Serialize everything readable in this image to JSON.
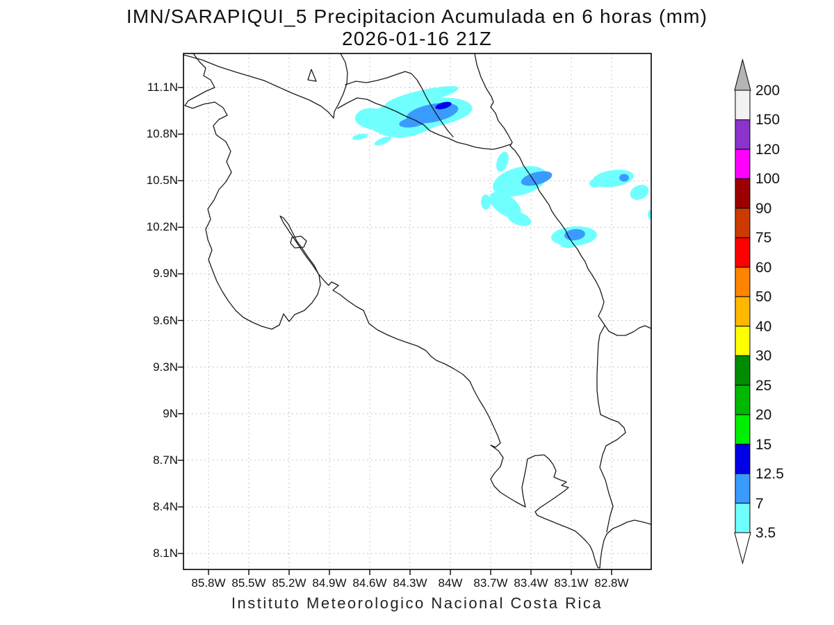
{
  "title": {
    "line1": "IMN/SARAPIQUI_5 Precipitacion Acumulada en 6 horas (mm)",
    "line2": "2026-01-16 21Z"
  },
  "caption": "Instituto Meteorologico Nacional Costa Rica",
  "axes": {
    "lat_ticks": [
      "11.1N",
      "10.8N",
      "10.5N",
      "10.2N",
      "9.9N",
      "9.6N",
      "9.3N",
      "9N",
      "8.7N",
      "8.4N",
      "8.1N"
    ],
    "lon_ticks": [
      "85.8W",
      "85.5W",
      "85.2W",
      "84.9W",
      "84.6W",
      "84.3W",
      "84W",
      "83.7W",
      "83.4W",
      "83.1W",
      "82.8W"
    ]
  },
  "colorbar": {
    "tick_labels": [
      "200",
      "150",
      "120",
      "100",
      "90",
      "75",
      "60",
      "50",
      "40",
      "30",
      "25",
      "20",
      "15",
      "12.5",
      "7",
      "3.5"
    ],
    "segment_colors_top_to_bottom": [
      "#f2f2f2",
      "#8c33cc",
      "#ff00ff",
      "#9b0000",
      "#cc3a00",
      "#ff0000",
      "#ff8400",
      "#ffb800",
      "#ffff00",
      "#008c00",
      "#00b800",
      "#00ee00",
      "#0000e6",
      "#3a9bff",
      "#70ffff"
    ],
    "above_max_arrow_color": "#b4b4b4",
    "below_min_arrow_color": "#ffffff"
  },
  "map_colors": {
    "coastline": "#1a1a1a",
    "grid": "#b3b3b3",
    "background": "#ffffff"
  },
  "precip_palette": {
    "light": "#70ffff",
    "medium": "#3a9bff",
    "dark": "#0000e6"
  },
  "chart_data": {
    "type": "heatmap",
    "title": "IMN/SARAPIQUI_5 Precipitacion Acumulada en 6 horas (mm)",
    "subtitle": "2026-01-16 21Z",
    "units": "mm",
    "region": "Costa Rica",
    "grid": "dotted",
    "legend_position": "right",
    "lon_range_deg_w": [
      86.0,
      82.5
    ],
    "lat_range_deg_n": [
      8.0,
      11.32
    ],
    "xticks_deg_w": [
      85.8,
      85.5,
      85.2,
      84.9,
      84.6,
      84.3,
      84.0,
      83.7,
      83.4,
      83.1,
      82.8
    ],
    "yticks_deg_n": [
      11.1,
      10.8,
      10.5,
      10.2,
      9.9,
      9.6,
      9.3,
      9.0,
      8.7,
      8.4,
      8.1
    ],
    "contour_levels_mm": [
      3.5,
      7,
      12.5,
      15,
      20,
      25,
      30,
      40,
      50,
      60,
      75,
      90,
      100,
      120,
      150,
      200
    ],
    "precip_cells": [
      {
        "lon_w": 84.1,
        "lat_n": 10.95,
        "peak_mm_range": "12.5-15",
        "extent": "elongated ENE band with small dark-blue core"
      },
      {
        "lon_w": 84.6,
        "lat_n": 10.77,
        "peak_mm_range": "3.5-7",
        "extent": "two small streaks"
      },
      {
        "lon_w": 83.5,
        "lat_n": 10.45,
        "peak_mm_range": "7-12.5",
        "extent": "multi-lobed cluster on Caribbean coast"
      },
      {
        "lon_w": 82.8,
        "lat_n": 10.5,
        "peak_mm_range": "7-12.5",
        "extent": "small band with blue core"
      },
      {
        "lon_w": 82.6,
        "lat_n": 10.4,
        "peak_mm_range": "3.5-7",
        "extent": "small round blob"
      },
      {
        "lon_w": 83.1,
        "lat_n": 10.15,
        "peak_mm_range": "7-12.5",
        "extent": "oval cell on coastline"
      },
      {
        "lon_w": 82.5,
        "lat_n": 10.28,
        "peak_mm_range": "3.5-7",
        "extent": "sliver at map edge"
      }
    ]
  }
}
